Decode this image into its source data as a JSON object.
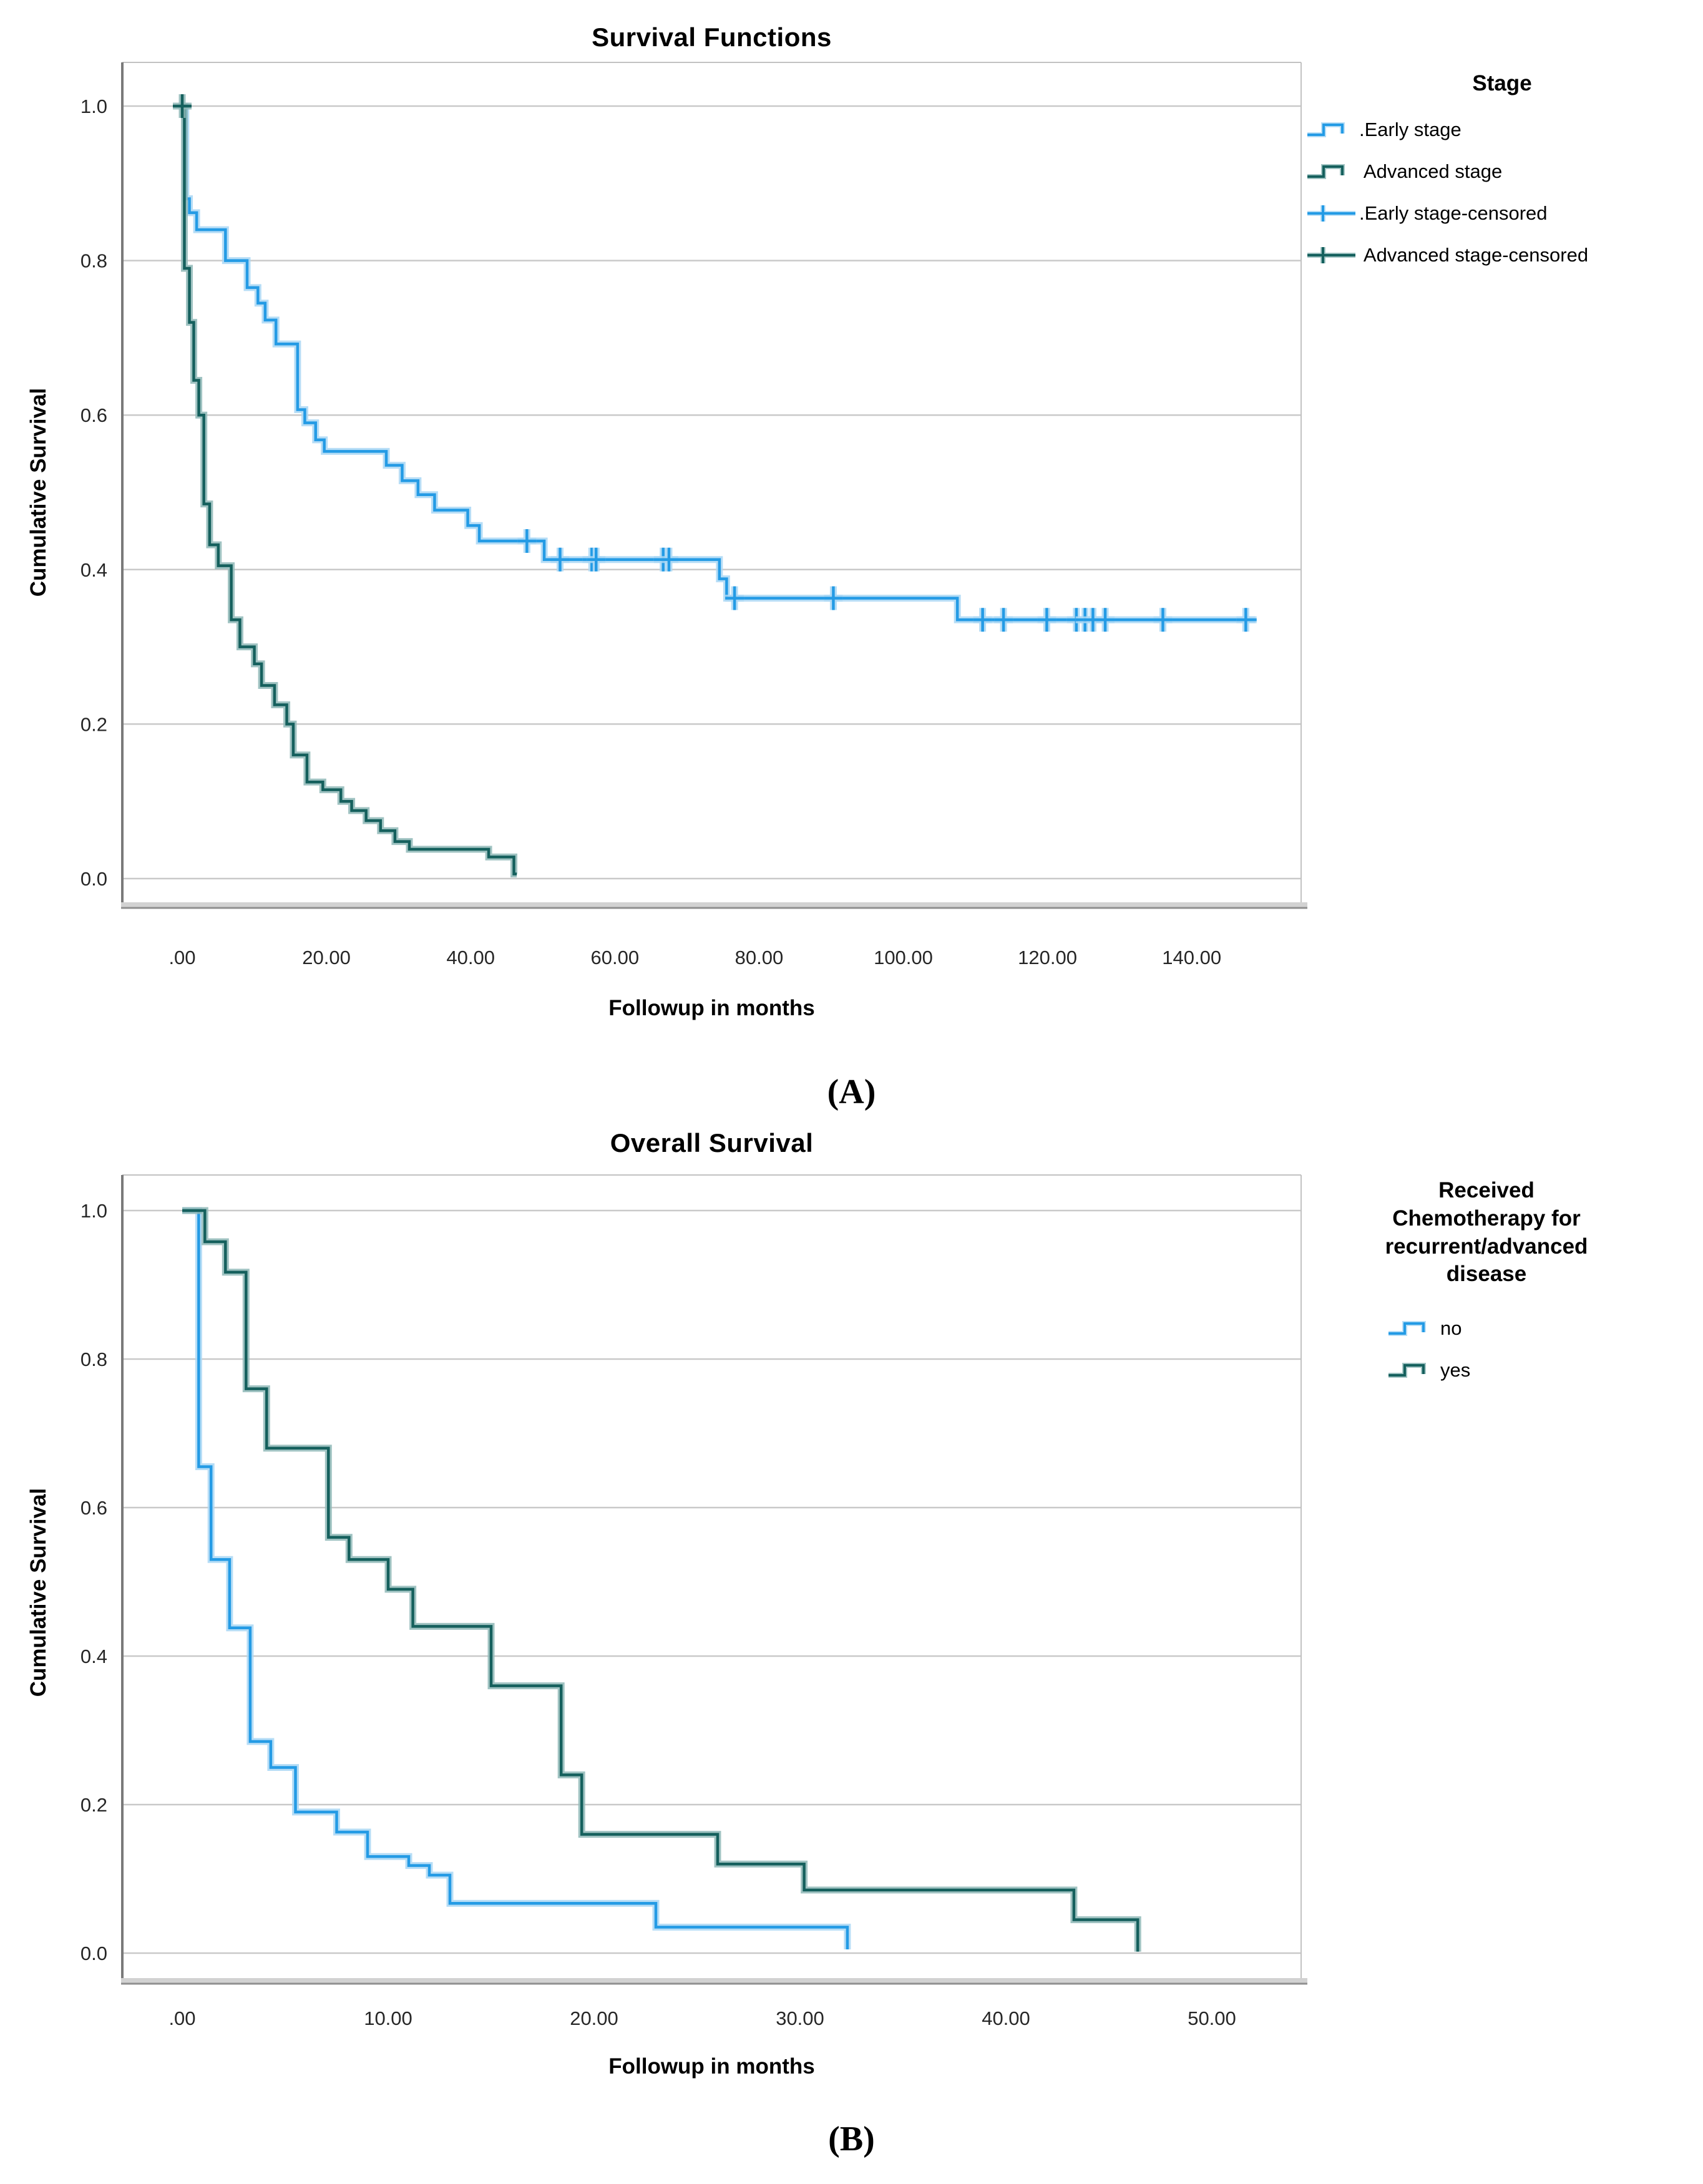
{
  "page": {
    "background": "#ffffff"
  },
  "palette": {
    "early_blue": "#249BE5",
    "early_blue_halo": "#A9D7F4",
    "advanced_teal": "#15605D",
    "advanced_teal_halo": "#8FB9B7",
    "gridline": "#C9C9C9",
    "frame": "#C2C2C2",
    "axis_left": "#7A7A7A",
    "axis_bottom_band": "#D2D2D2",
    "axis_bottom_edge": "#8F8F8F",
    "tick_text": "#262626",
    "text": "#000000"
  },
  "figure_a": {
    "title": "Survival Functions",
    "xlabel": "Followup in months",
    "ylabel": "Cumulative Survival",
    "caption": "(A)",
    "legend": {
      "title": "Stage",
      "items": [
        {
          "label": ".Early stage",
          "symbol": "step-line",
          "color": "#249BE5",
          "halo": "#A9D7F4"
        },
        {
          "label": " Advanced stage",
          "symbol": "step-line",
          "color": "#15605D",
          "halo": "#8FB9B7"
        },
        {
          "label": ".Early stage-censored",
          "symbol": "censor-plus",
          "color": "#249BE5",
          "halo": "#A9D7F4"
        },
        {
          "label": " Advanced stage-censored",
          "symbol": "censor-plus",
          "color": "#15605D",
          "halo": "#8FB9B7"
        }
      ]
    }
  },
  "figure_b": {
    "title": "Overall Survival",
    "xlabel": "Followup in months",
    "ylabel": "Cumulative Survival",
    "caption": "(B)",
    "legend": {
      "title": "Received\nChemotherapy for\nrecurrent/advanced\ndisease",
      "items": [
        {
          "label": "no",
          "symbol": "step-line",
          "color": "#249BE5",
          "halo": "#A9D7F4"
        },
        {
          "label": "yes",
          "symbol": "step-line",
          "color": "#15605D",
          "halo": "#8FB9B7"
        }
      ]
    }
  },
  "chart_data": [
    {
      "id": "A",
      "type": "line",
      "subtype": "kaplan-meier-step",
      "title": "Survival Functions",
      "xlabel": "Followup in months",
      "ylabel": "Cumulative Survival",
      "xlim": [
        0,
        155
      ],
      "ylim": [
        0,
        1.0
      ],
      "grid": "horizontal",
      "legend_position": "right",
      "legend_title": "Stage",
      "xticks": [
        {
          "v": 0,
          "label": ".00"
        },
        {
          "v": 20,
          "label": "20.00"
        },
        {
          "v": 40,
          "label": "40.00"
        },
        {
          "v": 60,
          "label": "60.00"
        },
        {
          "v": 80,
          "label": "80.00"
        },
        {
          "v": 100,
          "label": "100.00"
        },
        {
          "v": 120,
          "label": "120.00"
        },
        {
          "v": 140,
          "label": "140.00"
        }
      ],
      "yticks": [
        {
          "v": 1.0,
          "label": "1.0"
        },
        {
          "v": 0.8,
          "label": "0.8"
        },
        {
          "v": 0.6,
          "label": "0.6"
        },
        {
          "v": 0.4,
          "label": "0.4"
        },
        {
          "v": 0.2,
          "label": "0.2"
        },
        {
          "v": 0.0,
          "label": "0.0"
        }
      ],
      "series": [
        {
          "name": "Early stage",
          "color": "#249BE5",
          "halo": "#A9D7F4",
          "end": 149,
          "steps": [
            [
              0,
              1.0
            ],
            [
              0.5,
              0.88
            ],
            [
              1,
              0.862
            ],
            [
              2,
              0.84
            ],
            [
              6,
              0.8
            ],
            [
              9,
              0.765
            ],
            [
              10.5,
              0.745
            ],
            [
              11.5,
              0.723
            ],
            [
              13,
              0.692
            ],
            [
              16,
              0.607
            ],
            [
              17,
              0.59
            ],
            [
              18.5,
              0.568
            ],
            [
              19.7,
              0.553
            ],
            [
              28.3,
              0.535
            ],
            [
              30.5,
              0.515
            ],
            [
              32.7,
              0.497
            ],
            [
              35,
              0.477
            ],
            [
              39.6,
              0.457
            ],
            [
              41.2,
              0.437
            ],
            [
              50.2,
              0.413
            ],
            [
              74.5,
              0.388
            ],
            [
              75.5,
              0.363
            ],
            [
              107.5,
              0.335
            ]
          ],
          "censored": [
            47.8,
            52.4,
            56.8,
            57.4,
            66.7,
            67.5,
            76.6,
            90.3,
            111,
            113.9,
            119.9,
            124,
            125.2,
            126.3,
            128,
            136,
            147.5
          ]
        },
        {
          "name": "Advanced stage",
          "color": "#15605D",
          "halo": "#8FB9B7",
          "end": 46.4,
          "steps": [
            [
              0,
              1.0
            ],
            [
              0.3,
              0.79
            ],
            [
              1,
              0.72
            ],
            [
              1.6,
              0.645
            ],
            [
              2.3,
              0.6
            ],
            [
              3,
              0.485
            ],
            [
              3.8,
              0.432
            ],
            [
              5,
              0.405
            ],
            [
              6.8,
              0.335
            ],
            [
              8,
              0.3
            ],
            [
              10,
              0.278
            ],
            [
              11,
              0.25
            ],
            [
              12.8,
              0.225
            ],
            [
              14.5,
              0.2
            ],
            [
              15.4,
              0.16
            ],
            [
              17.3,
              0.125
            ],
            [
              19.5,
              0.115
            ],
            [
              22,
              0.1
            ],
            [
              23.5,
              0.088
            ],
            [
              25.5,
              0.075
            ],
            [
              27.5,
              0.062
            ],
            [
              29.5,
              0.048
            ],
            [
              31.5,
              0.038
            ],
            [
              42.5,
              0.028
            ],
            [
              46,
              0.006
            ]
          ],
          "censored": [
            0
          ]
        }
      ]
    },
    {
      "id": "B",
      "type": "line",
      "subtype": "kaplan-meier-step",
      "title": "Overall Survival",
      "xlabel": "Followup in months",
      "ylabel": "Cumulative Survival",
      "xlim": [
        0,
        54.3
      ],
      "ylim": [
        0,
        1.0
      ],
      "grid": "horizontal",
      "legend_position": "right",
      "legend_title": "Received Chemotherapy for recurrent/advanced disease",
      "xticks": [
        {
          "v": 0,
          "label": ".00"
        },
        {
          "v": 10,
          "label": "10.00"
        },
        {
          "v": 20,
          "label": "20.00"
        },
        {
          "v": 30,
          "label": "30.00"
        },
        {
          "v": 40,
          "label": "40.00"
        },
        {
          "v": 50,
          "label": "50.00"
        }
      ],
      "yticks": [
        {
          "v": 1.0,
          "label": "1.0"
        },
        {
          "v": 0.8,
          "label": "0.8"
        },
        {
          "v": 0.6,
          "label": "0.6"
        },
        {
          "v": 0.4,
          "label": "0.4"
        },
        {
          "v": 0.2,
          "label": "0.2"
        },
        {
          "v": 0.0,
          "label": "0.0"
        }
      ],
      "series": [
        {
          "name": "no",
          "color": "#249BE5",
          "halo": "#A9D7F4",
          "end": 32.3,
          "steps": [
            [
              0,
              1.0
            ],
            [
              0.8,
              0.655
            ],
            [
              1.4,
              0.53
            ],
            [
              2.3,
              0.438
            ],
            [
              3.3,
              0.285
            ],
            [
              4.3,
              0.25
            ],
            [
              5.5,
              0.19
            ],
            [
              7.5,
              0.163
            ],
            [
              9,
              0.13
            ],
            [
              11,
              0.118
            ],
            [
              12,
              0.105
            ],
            [
              13,
              0.067
            ],
            [
              23,
              0.035
            ],
            [
              32.3,
              0.005
            ]
          ],
          "censored": []
        },
        {
          "name": "yes",
          "color": "#15605D",
          "halo": "#8FB9B7",
          "end": 46.4,
          "steps": [
            [
              0,
              1.0
            ],
            [
              1.1,
              0.958
            ],
            [
              2.1,
              0.917
            ],
            [
              3.1,
              0.76
            ],
            [
              4.1,
              0.68
            ],
            [
              7.1,
              0.56
            ],
            [
              8.1,
              0.53
            ],
            [
              10,
              0.49
            ],
            [
              11.2,
              0.44
            ],
            [
              15,
              0.36
            ],
            [
              18.4,
              0.24
            ],
            [
              19.4,
              0.16
            ],
            [
              26,
              0.12
            ],
            [
              30.2,
              0.085
            ],
            [
              43.3,
              0.045
            ],
            [
              46.4,
              0.002
            ]
          ],
          "censored": []
        }
      ]
    }
  ]
}
